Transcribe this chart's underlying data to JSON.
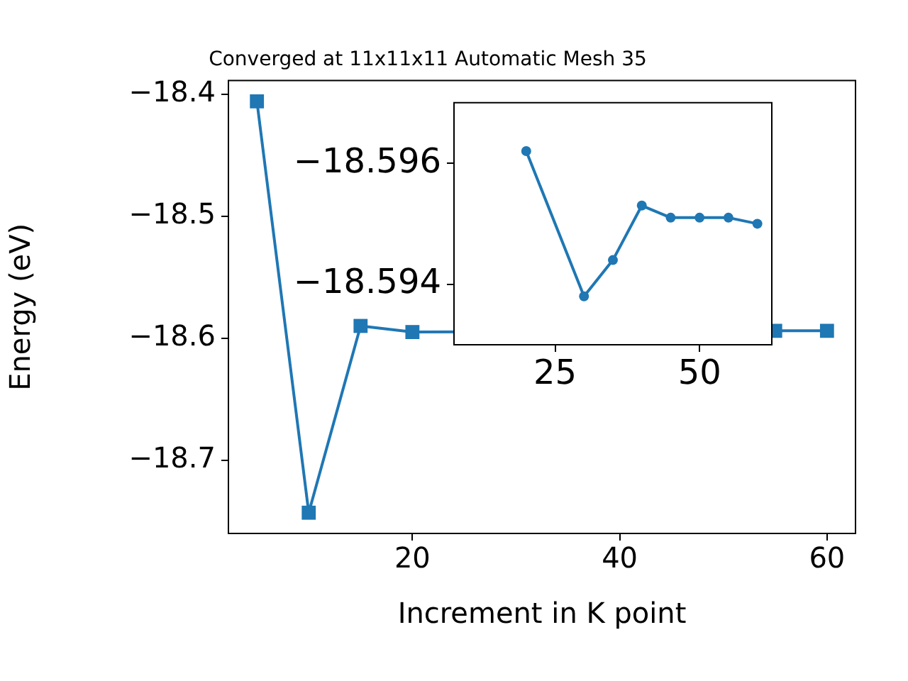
{
  "chart_data": [
    {
      "type": "line",
      "title": "Converged at 11x11x11 Automatic Mesh 35",
      "xlabel": "Increment in K point",
      "ylabel": "Energy (eV)",
      "x": [
        5,
        10,
        15,
        20,
        25,
        30,
        35,
        40,
        45,
        50,
        55,
        60
      ],
      "series": [
        {
          "color": "#1f77b4",
          "values": [
            -18.406,
            -18.743,
            -18.59,
            -18.595,
            null,
            null,
            null,
            null,
            null,
            null,
            -18.594,
            -18.594
          ]
        }
      ],
      "marker": "square",
      "line_style": "solid",
      "grid": false,
      "legend": false,
      "xlim": [
        2.25,
        62.75
      ],
      "xticks": [
        20,
        40,
        60
      ],
      "ylim": [
        -18.76,
        -18.389
      ],
      "yticks": [
        {
          "value": -18.4,
          "label": "−18.4"
        },
        {
          "value": -18.5,
          "label": "−18.5"
        },
        {
          "value": -18.6,
          "label": "−18.6"
        },
        {
          "value": -18.7,
          "label": "−18.7"
        }
      ]
    },
    {
      "type": "line",
      "x": [
        20,
        30,
        35,
        40,
        45,
        50,
        55,
        60
      ],
      "series": [
        {
          "color": "#1f77b4",
          "values": [
            -18.5962,
            -18.5938,
            -18.5944,
            -18.5953,
            -18.5951,
            -18.5951,
            -18.5951,
            -18.595
          ]
        }
      ],
      "marker": "circle",
      "line_style": "solid",
      "grid": false,
      "legend": false,
      "xlim": [
        7.5,
        62.5
      ],
      "xticks": [
        25,
        50
      ],
      "ylim": [
        -18.593,
        -18.597
      ],
      "yticks": [
        {
          "value": -18.596,
          "label": "−18.596"
        },
        {
          "value": -18.594,
          "label": "−18.594"
        }
      ]
    }
  ]
}
